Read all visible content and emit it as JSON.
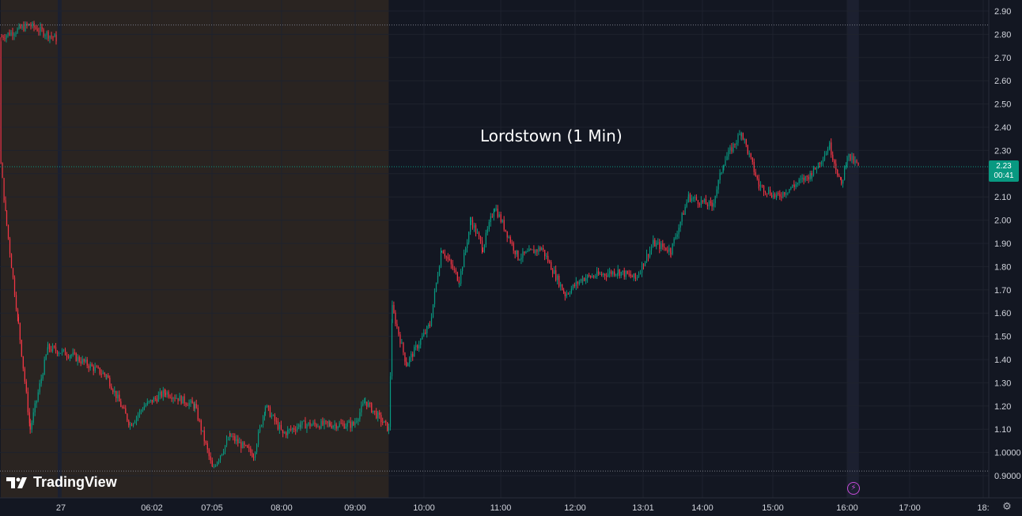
{
  "chart_data": {
    "type": "candlestick",
    "title": "Lordstown (1 Min)",
    "ylim": [
      0.88,
      2.93
    ],
    "y_ticks": [
      "2.90",
      "2.80",
      "2.70",
      "2.60",
      "2.50",
      "2.40",
      "2.30",
      "2.20",
      "2.10",
      "2.00",
      "1.90",
      "1.80",
      "1.70",
      "1.60",
      "1.50",
      "1.40",
      "1.30",
      "1.20",
      "1.10",
      "1.0000",
      "0.9000"
    ],
    "x_ticks": [
      "27",
      "06:02",
      "07:05",
      "08:00",
      "09:00",
      "10:00",
      "11:00",
      "12:00",
      "13:01",
      "14:00",
      "15:00",
      "16:00",
      "17:00",
      "18:"
    ],
    "last_price": "2.23",
    "countdown": "00:41",
    "session_high_line": 2.84,
    "session_low_line": 0.92,
    "path": [
      [
        "prev",
        2.79
      ],
      [
        "prev",
        2.84
      ],
      [
        "prev",
        2.78
      ],
      [
        "04:00",
        2.24
      ],
      [
        "04:05",
        1.98
      ],
      [
        "04:15",
        1.55
      ],
      [
        "04:25",
        1.1
      ],
      [
        "04:40",
        1.45
      ],
      [
        "05:00",
        1.42
      ],
      [
        "05:30",
        1.33
      ],
      [
        "05:50",
        1.12
      ],
      [
        "06:02",
        1.2
      ],
      [
        "06:20",
        1.26
      ],
      [
        "06:45",
        1.2
      ],
      [
        "07:00",
        0.93
      ],
      [
        "07:15",
        1.07
      ],
      [
        "07:35",
        0.99
      ],
      [
        "07:45",
        1.2
      ],
      [
        "08:00",
        1.08
      ],
      [
        "08:15",
        1.12
      ],
      [
        "08:40",
        1.12
      ],
      [
        "09:00",
        1.12
      ],
      [
        "09:10",
        1.22
      ],
      [
        "09:30",
        1.1
      ],
      [
        "09:33",
        1.62
      ],
      [
        "09:45",
        1.38
      ],
      [
        "10:05",
        1.55
      ],
      [
        "10:15",
        1.88
      ],
      [
        "10:30",
        1.74
      ],
      [
        "10:40",
        2.0
      ],
      [
        "10:50",
        1.88
      ],
      [
        "11:00",
        2.06
      ],
      [
        "11:20",
        1.84
      ],
      [
        "11:40",
        1.88
      ],
      [
        "12:00",
        1.68
      ],
      [
        "12:15",
        1.75
      ],
      [
        "12:45",
        1.78
      ],
      [
        "13:00",
        1.75
      ],
      [
        "13:15",
        1.9
      ],
      [
        "13:30",
        1.87
      ],
      [
        "13:45",
        2.1
      ],
      [
        "14:05",
        2.06
      ],
      [
        "14:15",
        2.25
      ],
      [
        "14:30",
        2.38
      ],
      [
        "14:45",
        2.15
      ],
      [
        "15:00",
        2.1
      ],
      [
        "15:15",
        2.15
      ],
      [
        "15:30",
        2.2
      ],
      [
        "15:45",
        2.32
      ],
      [
        "15:55",
        2.15
      ],
      [
        "16:00",
        2.28
      ],
      [
        "16:10",
        2.23
      ]
    ],
    "pre_market_shade": [
      "04:00",
      "09:30"
    ],
    "post_market_shade": [
      "16:00",
      "16:10"
    ],
    "grid": true
  },
  "colors": {
    "bg": "#131722",
    "up": "#089981",
    "down": "#f23645",
    "grid": "#1e222d",
    "premarket": "#2a2421",
    "postmarket": "#1c2030",
    "axis_text": "#d1d4dc"
  },
  "branding": {
    "logo_text": "TradingView"
  }
}
